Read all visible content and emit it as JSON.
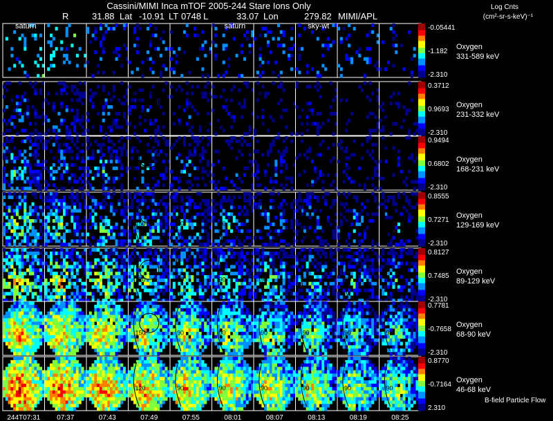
{
  "header": {
    "title": "Cassini/MIMI Inca mTOF  2005-244   Stare   Ions Only",
    "r_label": "R",
    "r_value": "31.88",
    "lat_label": "Lat",
    "lat_value": "-10.91",
    "lt_label": "LT",
    "lt_value": "0748",
    "l_label": "L",
    "l_value": "33.07",
    "lon_label": "Lon",
    "lon_value": "279.82",
    "credit": "MIMI/APL"
  },
  "units": {
    "title": "Log Cnts",
    "subtitle": "(cm²-sr-s-keV)⁻¹"
  },
  "footer": {
    "label": "B-field Particle Flow"
  },
  "chart_data": {
    "type": "heatmap",
    "title": "Cassini/MIMI Inca mTOF  2005-244   Stare   Ions Only",
    "x_tick_labels": [
      "244T07:31",
      "07:37",
      "07:43",
      "07:49",
      "07:55",
      "08:01",
      "08:07",
      "08:13",
      "08:19",
      "08:25"
    ],
    "column_overlays": [
      "saturn",
      "",
      "",
      "",
      "",
      "saturn",
      "",
      "sky-wt",
      "",
      ""
    ],
    "contour_labels": [
      "90",
      "120",
      "150",
      "180"
    ],
    "colorscale": [
      "#00008b",
      "#0000ff",
      "#0090ff",
      "#00ffff",
      "#80ff40",
      "#ffff00",
      "#ff8000",
      "#ff0000",
      "#a00000"
    ],
    "rows": [
      {
        "species": "Oxygen",
        "energy": "331-589 keV",
        "cbar_max": "-0.05441",
        "cbar_mid": "-1.182",
        "cbar_min": "-2.310"
      },
      {
        "species": "Oxygen",
        "energy": "231-332 keV",
        "cbar_max": "0.3712",
        "cbar_mid": "0.9693",
        "cbar_min": "-2.310"
      },
      {
        "species": "Oxygen",
        "energy": "168-231 keV",
        "cbar_max": "0.9494",
        "cbar_mid": "0.6802",
        "cbar_min": "-2.310"
      },
      {
        "species": "Oxygen",
        "energy": "129-169 keV",
        "cbar_max": "0.8555",
        "cbar_mid": "0.7271",
        "cbar_min": "-2.310"
      },
      {
        "species": "Oxygen",
        "energy": "89-129 keV",
        "cbar_max": "0.8127",
        "cbar_mid": "0.7485",
        "cbar_min": "-2.310"
      },
      {
        "species": "Oxygen",
        "energy": "68-90 keV",
        "cbar_max": "0.7781",
        "cbar_mid": "-0.7658",
        "cbar_min": "-2.310"
      },
      {
        "species": "Oxygen",
        "energy": "46-68 keV",
        "cbar_max": "0.8770",
        "cbar_mid": "-0.7164",
        "cbar_min": "2.310"
      }
    ]
  }
}
